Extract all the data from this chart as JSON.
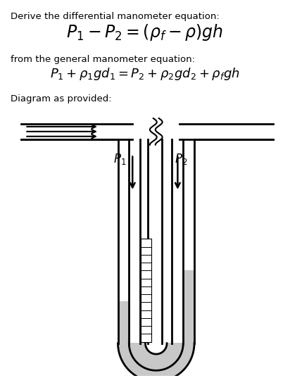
{
  "title_line1": "Derive the differential manometer equation:",
  "eq1": "$P_1 - P_2 = (\\rho_f - \\rho)gh$",
  "text2": "from the general manometer equation:",
  "eq2": "$P_1 + \\rho_1 g d_1 = P_2 + \\rho_2 g d_2 + \\rho_f gh$",
  "text3": "Diagram as provided:",
  "bg_color": "#ffffff",
  "text_color": "#000000",
  "diagram_line_color": "#000000",
  "fluid_color": "#c8c8c8"
}
